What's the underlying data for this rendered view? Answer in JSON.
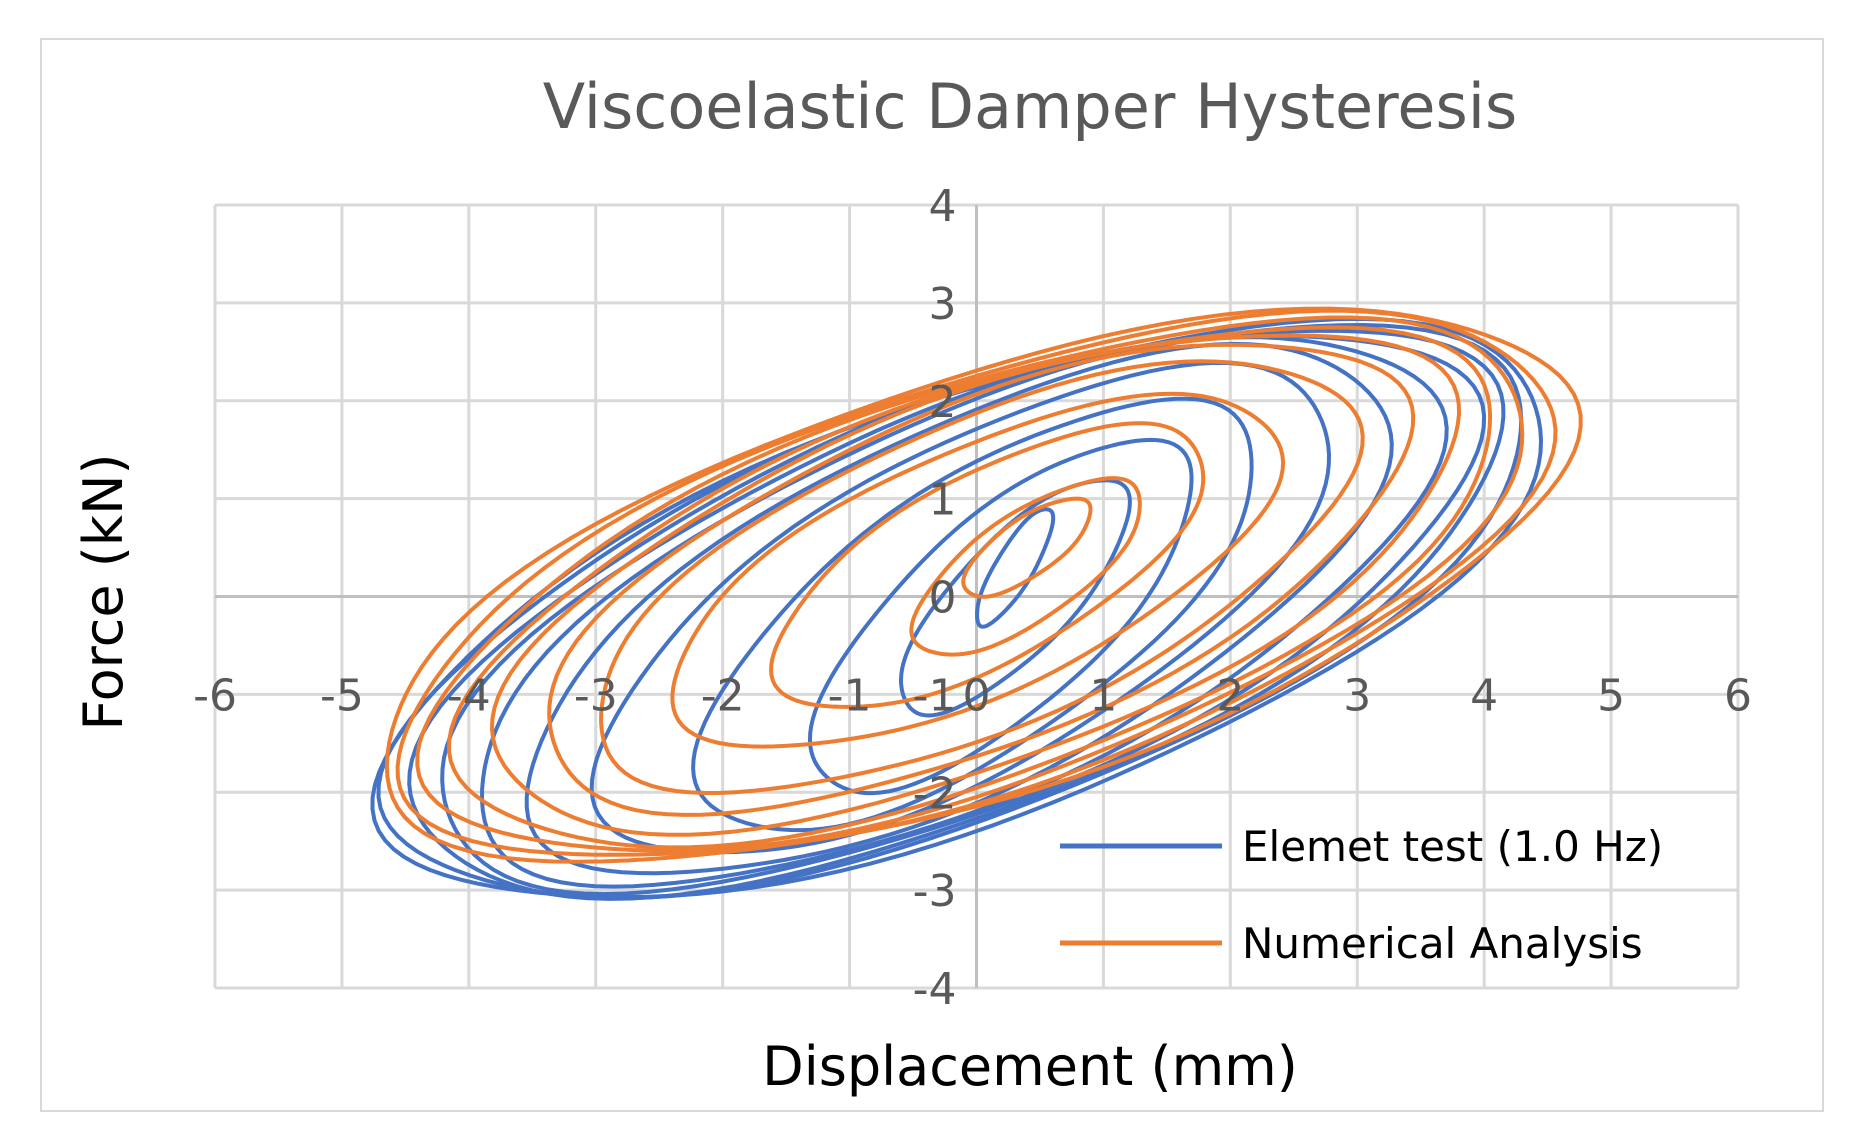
{
  "chart_data": {
    "type": "line",
    "title": "Viscoelastic Damper Hysteresis",
    "xlabel": "Displacement (mm)",
    "ylabel": "Force (kN)",
    "xlim": [
      -6,
      6
    ],
    "ylim": [
      -4,
      4
    ],
    "xticks": [
      -6,
      -5,
      -4,
      -3,
      -2,
      -1,
      0,
      1,
      2,
      3,
      4,
      5,
      6
    ],
    "yticks": [
      -4,
      -3,
      -2,
      -1,
      0,
      1,
      2,
      3,
      4
    ],
    "grid": true,
    "legend": "bottom-right",
    "series": [
      {
        "name": "Elemet test (1.0 Hz)",
        "color": "#4472c4",
        "loops": [
          {
            "cx": 0.3,
            "cy": 0.3,
            "ax": 0.3,
            "ay": 0.6,
            "phase": 0.6
          },
          {
            "cx": 0.3,
            "cy": 0.0,
            "ax": 0.9,
            "ay": 1.2,
            "phase": 0.7
          },
          {
            "cx": 0.2,
            "cy": -0.2,
            "ax": 1.5,
            "ay": 1.8,
            "phase": 0.75
          },
          {
            "cx": 0.0,
            "cy": -0.2,
            "ax": 2.2,
            "ay": 2.2,
            "phase": 0.8
          },
          {
            "cx": -0.1,
            "cy": -0.15,
            "ax": 2.9,
            "ay": 2.5,
            "phase": 0.82
          },
          {
            "cx": -0.15,
            "cy": -0.15,
            "ax": 3.4,
            "ay": 2.7,
            "phase": 0.84
          },
          {
            "cx": -0.15,
            "cy": -0.15,
            "ax": 3.8,
            "ay": 2.8,
            "phase": 0.85
          },
          {
            "cx": -0.15,
            "cy": -0.15,
            "ax": 4.1,
            "ay": 2.85,
            "phase": 0.86
          },
          {
            "cx": -0.15,
            "cy": -0.15,
            "ax": 4.3,
            "ay": 2.9,
            "phase": 0.87
          },
          {
            "cx": -0.15,
            "cy": -0.15,
            "ax": 4.5,
            "ay": 2.92,
            "phase": 0.875
          },
          {
            "cx": -0.1,
            "cy": -0.15,
            "ax": 4.6,
            "ay": 2.95,
            "phase": 0.88
          }
        ]
      },
      {
        "name": "Numerical Analysis",
        "color": "#ed7d31",
        "loops": [
          {
            "cx": 0.4,
            "cy": 0.5,
            "ax": 0.5,
            "ay": 0.5,
            "phase": 0.75
          },
          {
            "cx": 0.4,
            "cy": 0.3,
            "ax": 0.9,
            "ay": 0.9,
            "phase": 0.78
          },
          {
            "cx": 0.1,
            "cy": 0.3,
            "ax": 1.7,
            "ay": 1.45,
            "phase": 0.82
          },
          {
            "cx": 0.0,
            "cy": 0.25,
            "ax": 2.4,
            "ay": 1.8,
            "phase": 0.85
          },
          {
            "cx": 0.0,
            "cy": 0.2,
            "ax": 3.0,
            "ay": 2.2,
            "phase": 0.87
          },
          {
            "cx": 0.0,
            "cy": 0.2,
            "ax": 3.4,
            "ay": 2.4,
            "phase": 0.88
          },
          {
            "cx": 0.0,
            "cy": 0.15,
            "ax": 3.8,
            "ay": 2.55,
            "phase": 0.89
          },
          {
            "cx": 0.0,
            "cy": 0.1,
            "ax": 4.1,
            "ay": 2.65,
            "phase": 0.895
          },
          {
            "cx": 0.0,
            "cy": 0.1,
            "ax": 4.35,
            "ay": 2.72,
            "phase": 0.9
          },
          {
            "cx": 0.0,
            "cy": 0.1,
            "ax": 4.55,
            "ay": 2.78,
            "phase": 0.905
          },
          {
            "cx": 0.0,
            "cy": 0.1,
            "ax": 4.7,
            "ay": 2.82,
            "phase": 0.91
          }
        ]
      }
    ]
  }
}
